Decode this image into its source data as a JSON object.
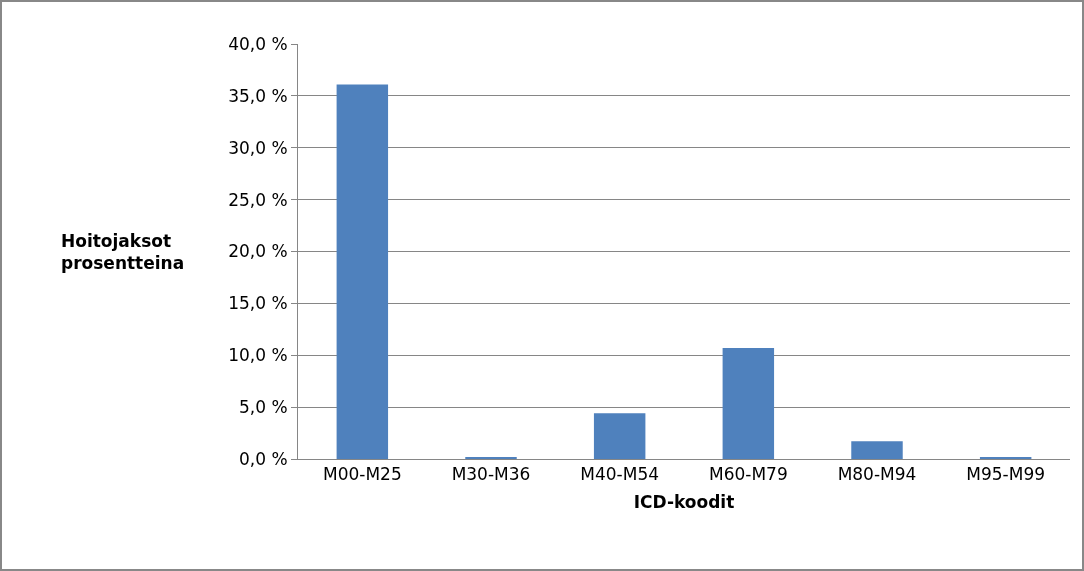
{
  "chart_data": {
    "type": "bar",
    "xlabel": "ICD-koodit",
    "ylabel": "Hoitojaksot\nprosentteina",
    "categories": [
      "M00-M25",
      "M30-M36",
      "M40-M54",
      "M60-M79",
      "M80-M94",
      "M95-M99"
    ],
    "values": [
      36.1,
      0.1,
      4.4,
      10.7,
      1.7,
      0.1
    ],
    "color": "#4f81bd",
    "ylim": [
      0,
      40
    ],
    "yticks": [
      {
        "value": 0,
        "label": "0,0 %"
      },
      {
        "value": 5,
        "label": "5,0 %"
      },
      {
        "value": 10,
        "label": "10,0 %"
      },
      {
        "value": 15,
        "label": "15,0 %"
      },
      {
        "value": 20,
        "label": "20,0 %"
      },
      {
        "value": 25,
        "label": "25,0 %"
      },
      {
        "value": 30,
        "label": "30,0 %"
      },
      {
        "value": 35,
        "label": "35,0 %"
      },
      {
        "value": 40,
        "label": "40,0 %"
      }
    ],
    "grid": "y",
    "legend": false
  }
}
